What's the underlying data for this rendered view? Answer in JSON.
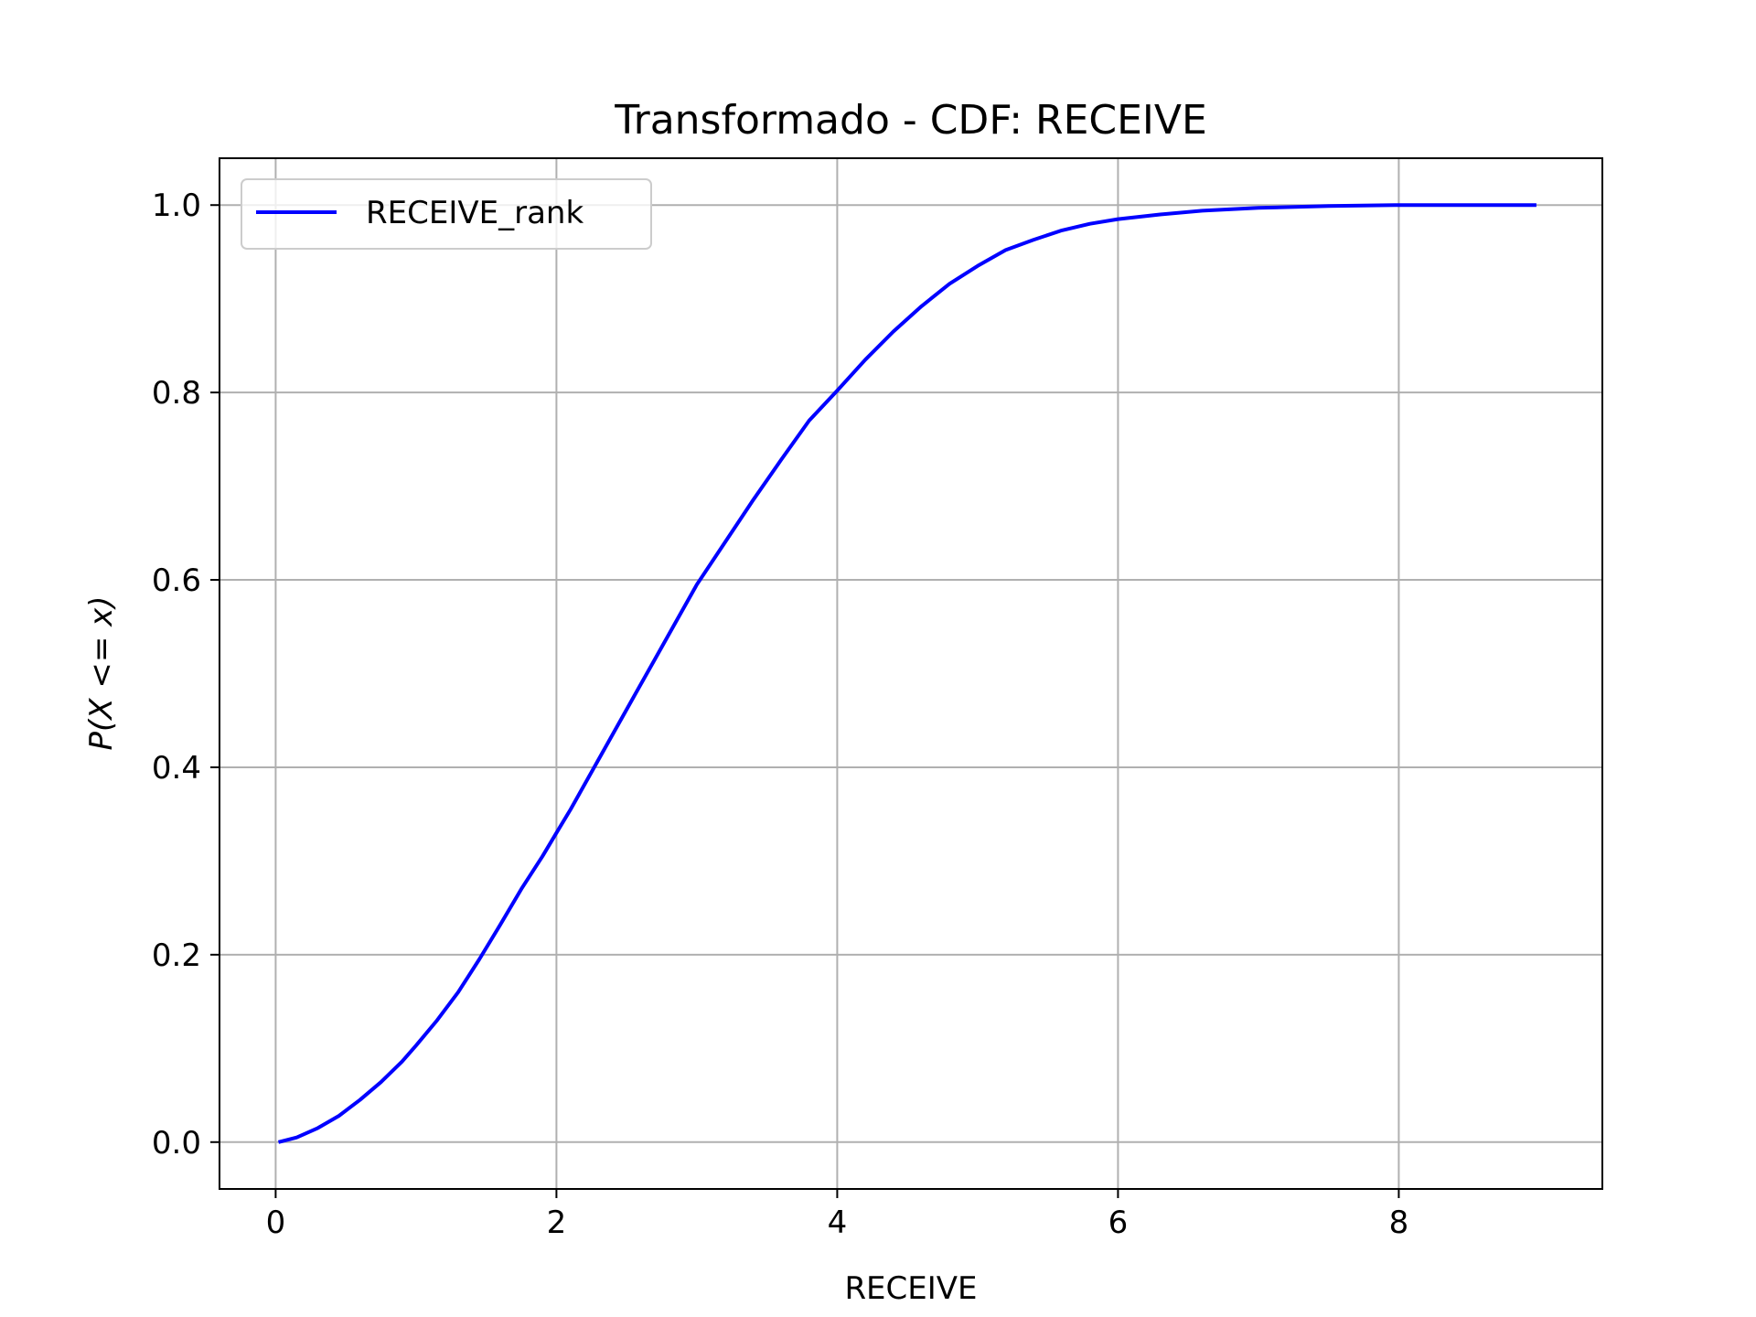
{
  "chart_data": {
    "type": "line",
    "title": "Transformado - CDF: RECEIVE",
    "xlabel": "RECEIVE",
    "ylabel": "P(X <= x)",
    "xlim": [
      -0.4,
      9.45
    ],
    "ylim": [
      -0.05,
      1.05
    ],
    "x_ticks": [
      0,
      2,
      4,
      6,
      8
    ],
    "y_ticks": [
      0.0,
      0.2,
      0.4,
      0.6,
      0.8,
      1.0
    ],
    "x_tick_labels": [
      "0",
      "2",
      "4",
      "6",
      "8"
    ],
    "y_tick_labels": [
      "0.0",
      "0.2",
      "0.4",
      "0.6",
      "0.8",
      "1.0"
    ],
    "grid": true,
    "legend_position": "upper-left",
    "series": [
      {
        "name": "RECEIVE_rank",
        "color": "#0000ff",
        "x": [
          0.02,
          0.15,
          0.3,
          0.45,
          0.6,
          0.75,
          0.9,
          1.0,
          1.15,
          1.3,
          1.45,
          1.6,
          1.75,
          1.9,
          2.0,
          2.1,
          2.25,
          2.4,
          2.55,
          2.7,
          2.85,
          3.0,
          3.2,
          3.4,
          3.6,
          3.8,
          4.0,
          4.2,
          4.4,
          4.6,
          4.8,
          5.0,
          5.2,
          5.4,
          5.6,
          5.8,
          6.0,
          6.3,
          6.6,
          7.0,
          7.5,
          8.0,
          8.5,
          8.98
        ],
        "y": [
          0.0,
          0.005,
          0.015,
          0.028,
          0.045,
          0.064,
          0.086,
          0.103,
          0.13,
          0.16,
          0.195,
          0.232,
          0.27,
          0.305,
          0.33,
          0.355,
          0.395,
          0.435,
          0.475,
          0.515,
          0.555,
          0.595,
          0.64,
          0.685,
          0.728,
          0.77,
          0.802,
          0.835,
          0.865,
          0.892,
          0.916,
          0.935,
          0.952,
          0.963,
          0.973,
          0.98,
          0.985,
          0.99,
          0.994,
          0.997,
          0.999,
          1.0,
          1.0,
          1.0
        ]
      }
    ]
  }
}
